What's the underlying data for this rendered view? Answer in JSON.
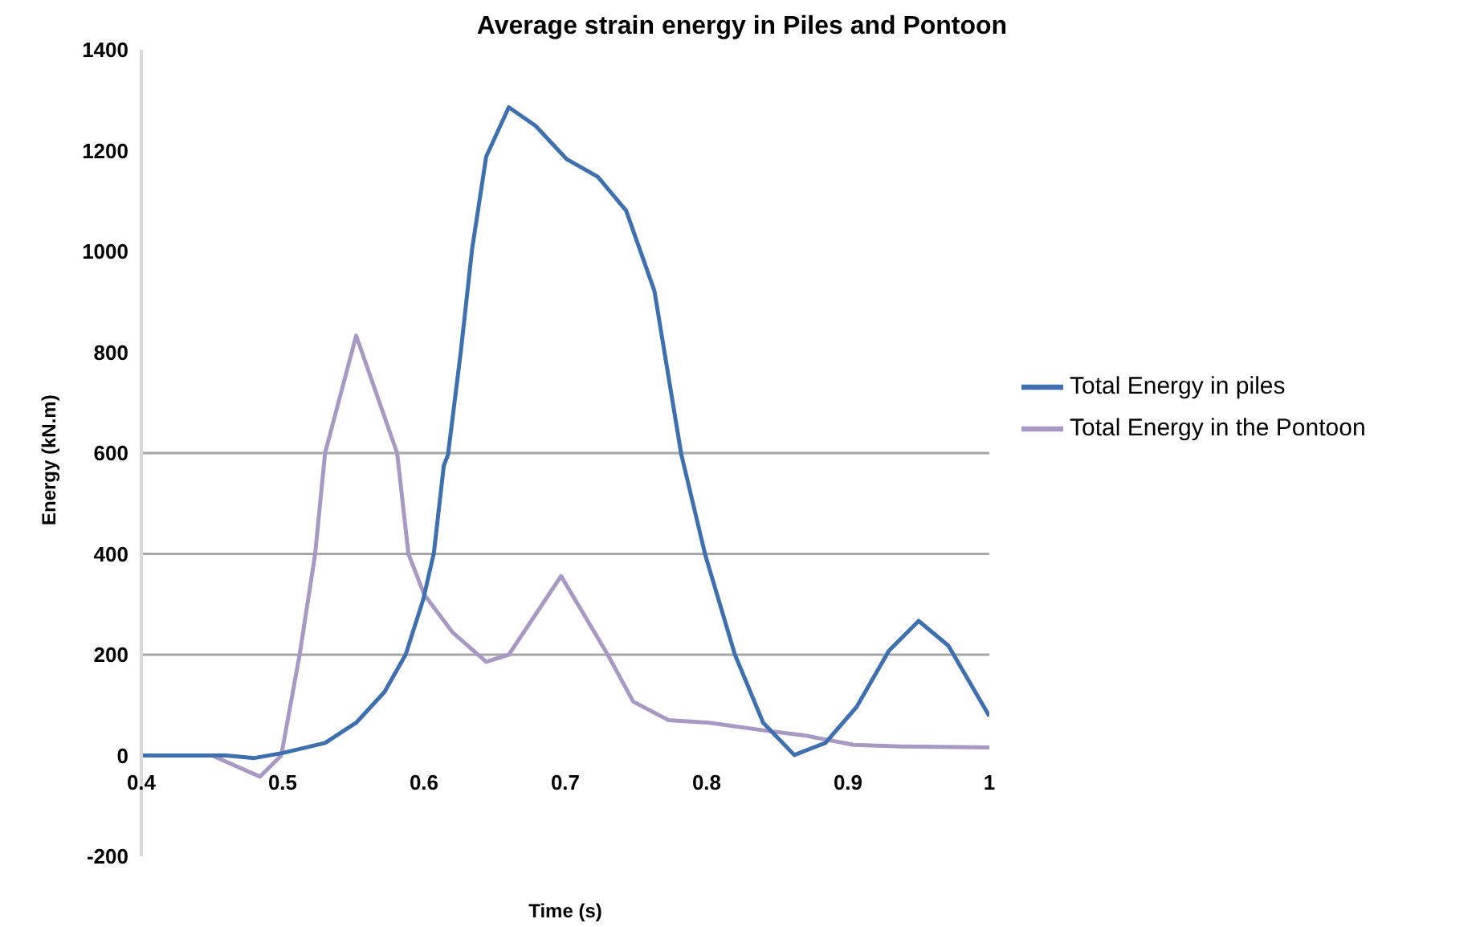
{
  "chart_data": {
    "type": "line",
    "title": "Average strain energy in Piles and Pontoon",
    "xlabel": "Time (s)",
    "ylabel": "Energy (kN.m)",
    "xlim": [
      0.4,
      1
    ],
    "xticks": [
      0.4,
      0.5,
      0.6,
      0.7,
      0.8,
      0.9,
      1
    ],
    "ylim": [
      -200,
      1400
    ],
    "yticks": [
      -200,
      0,
      200,
      400,
      600,
      800,
      1000,
      1200,
      1400
    ],
    "legend": "right",
    "marker": "none",
    "line_style": "solid",
    "ref_lines": [
      {
        "axis": "y",
        "value": 200,
        "color": "#a6a6a6"
      },
      {
        "axis": "y",
        "value": 400,
        "color": "#a6a6a6"
      },
      {
        "axis": "y",
        "value": 600,
        "color": "#a6a6a6"
      }
    ],
    "series": [
      {
        "name": "Total Energy in the Pontoon",
        "color": "#a899c4",
        "x": [
          0.4,
          0.45,
          0.484,
          0.499,
          0.512,
          0.523,
          0.53,
          0.552,
          0.581,
          0.589,
          0.6,
          0.62,
          0.644,
          0.66,
          0.697,
          0.73,
          0.748,
          0.773,
          0.802,
          0.84,
          0.869,
          0.904,
          0.938,
          1
        ],
        "values": [
          0,
          0,
          -42,
          0,
          200,
          400,
          600,
          833,
          600,
          400,
          320,
          245,
          186,
          200,
          356,
          200,
          107,
          70,
          65,
          50,
          40,
          21,
          18,
          16
        ]
      },
      {
        "name": "Total Energy in piles",
        "color": "#3e6faf",
        "x": [
          0.4,
          0.46,
          0.48,
          0.5,
          0.53,
          0.552,
          0.572,
          0.587,
          0.5995,
          0.607,
          0.614,
          0.617,
          0.626,
          0.634,
          0.644,
          0.66,
          0.679,
          0.701,
          0.723,
          0.743,
          0.763,
          0.782,
          0.799,
          0.82,
          0.84,
          0.862,
          0.884,
          0.906,
          0.929,
          0.95,
          0.971,
          1
        ],
        "values": [
          0,
          0,
          -5,
          5,
          25,
          65,
          126,
          200,
          310,
          402,
          575,
          597,
          800,
          1004,
          1188,
          1286,
          1249,
          1183,
          1148,
          1081,
          922,
          598,
          398,
          200,
          65,
          1,
          25,
          96,
          208,
          267,
          218,
          78
        ]
      }
    ]
  }
}
